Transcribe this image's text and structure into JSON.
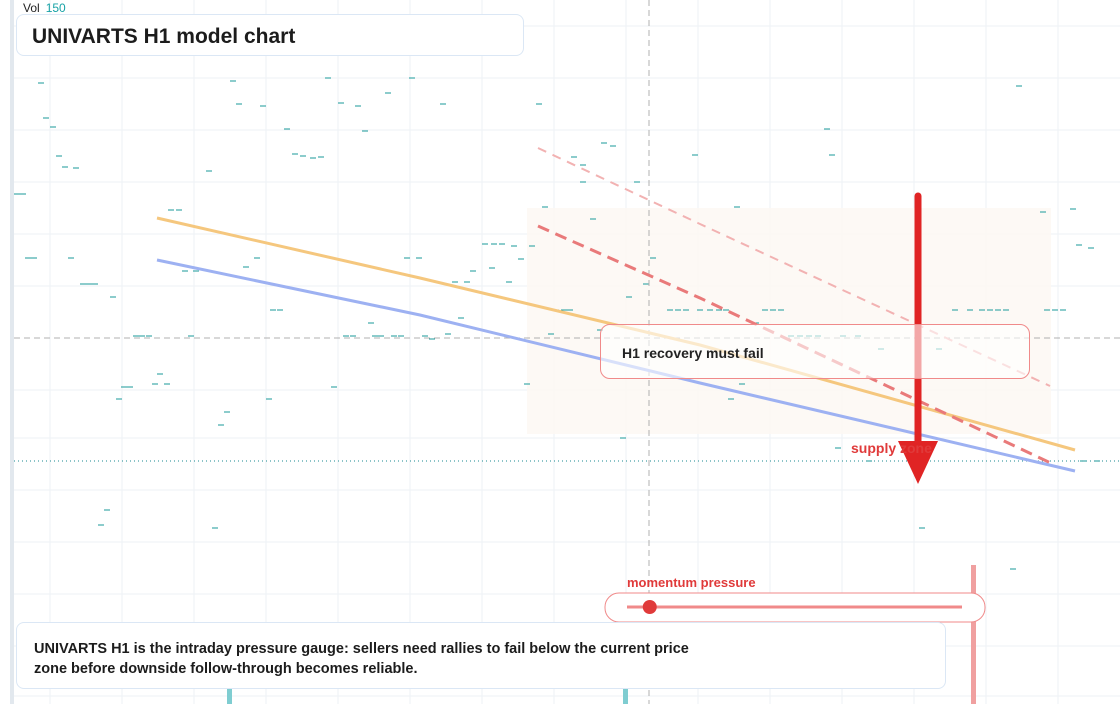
{
  "header": {
    "title": "UNIVARTS H1 model chart",
    "vol_label": "Vol",
    "vol_value": "150"
  },
  "annotations": {
    "callout": "H1 recovery must fail",
    "zone_label": "supply zone",
    "gauge_label": "momentum pressure"
  },
  "description": "UNIVARTS H1 is the intraday pressure gauge: sellers need rallies to fail below the current price zone before downside follow-through becomes reliable.",
  "colors": {
    "bearish_arrow": "#e02424",
    "orange_line": "#f5c77e",
    "blue_line": "#9db1f2",
    "trend_red": "#e97a7a",
    "trend_pink": "#f2b2b2",
    "tick_marks": "#1a9a9a",
    "zone_fill": "#fdf7f2"
  },
  "chart_data": {
    "type": "line",
    "title": "UNIVARTS H1 model chart",
    "xlabel": "",
    "ylabel": "",
    "grid": true,
    "momentum_pressure": 0.05,
    "series": [
      {
        "values": [
          [
            157,
            218
          ],
          [
            420,
            278
          ],
          [
            700,
            345
          ],
          [
            1075,
            450
          ]
        ]
      },
      {
        "values": [
          [
            157,
            260
          ],
          [
            420,
            315
          ],
          [
            700,
            383
          ],
          [
            1075,
            471
          ]
        ]
      },
      {
        "values": [
          [
            538,
            226
          ],
          [
            700,
            298
          ],
          [
            1055,
            465
          ]
        ]
      },
      {
        "values": [
          [
            538,
            148
          ],
          [
            700,
            224
          ],
          [
            1050,
            386
          ]
        ]
      }
    ],
    "ticks": [
      [
        38,
        83
      ],
      [
        230,
        81
      ],
      [
        325,
        78
      ],
      [
        409,
        78
      ],
      [
        236,
        104
      ],
      [
        260,
        106
      ],
      [
        338,
        103
      ],
      [
        355,
        106
      ],
      [
        385,
        93
      ],
      [
        440,
        104
      ],
      [
        536,
        104
      ],
      [
        43,
        118
      ],
      [
        50,
        127
      ],
      [
        284,
        129
      ],
      [
        362,
        131
      ],
      [
        56,
        156
      ],
      [
        62,
        167
      ],
      [
        73,
        168
      ],
      [
        206,
        171
      ],
      [
        292,
        154
      ],
      [
        300,
        156
      ],
      [
        310,
        158
      ],
      [
        318,
        157
      ],
      [
        601,
        143
      ],
      [
        610,
        146
      ],
      [
        571,
        157
      ],
      [
        580,
        165
      ],
      [
        692,
        155
      ],
      [
        824,
        129
      ],
      [
        829,
        155
      ],
      [
        1016,
        86
      ],
      [
        14,
        194
      ],
      [
        20,
        194
      ],
      [
        168,
        210
      ],
      [
        176,
        210
      ],
      [
        542,
        207
      ],
      [
        590,
        219
      ],
      [
        634,
        182
      ],
      [
        734,
        207
      ],
      [
        1040,
        212
      ],
      [
        1070,
        209
      ],
      [
        25,
        258
      ],
      [
        31,
        258
      ],
      [
        68,
        258
      ],
      [
        182,
        271
      ],
      [
        193,
        271
      ],
      [
        243,
        267
      ],
      [
        254,
        258
      ],
      [
        404,
        258
      ],
      [
        416,
        258
      ],
      [
        470,
        271
      ],
      [
        482,
        244
      ],
      [
        491,
        244
      ],
      [
        499,
        244
      ],
      [
        511,
        246
      ],
      [
        518,
        259
      ],
      [
        529,
        246
      ],
      [
        489,
        268
      ],
      [
        452,
        282
      ],
      [
        464,
        282
      ],
      [
        506,
        282
      ],
      [
        580,
        182
      ],
      [
        650,
        258
      ],
      [
        80,
        284
      ],
      [
        86,
        284
      ],
      [
        92,
        284
      ],
      [
        110,
        297
      ],
      [
        270,
        310
      ],
      [
        277,
        310
      ],
      [
        553,
        310
      ],
      [
        561,
        310
      ],
      [
        567,
        310
      ],
      [
        626,
        297
      ],
      [
        643,
        284
      ],
      [
        667,
        310
      ],
      [
        675,
        310
      ],
      [
        683,
        310
      ],
      [
        697,
        310
      ],
      [
        707,
        310
      ],
      [
        716,
        310
      ],
      [
        723,
        310
      ],
      [
        762,
        310
      ],
      [
        770,
        310
      ],
      [
        778,
        310
      ],
      [
        133,
        336
      ],
      [
        139,
        336
      ],
      [
        146,
        336
      ],
      [
        188,
        336
      ],
      [
        343,
        336
      ],
      [
        350,
        336
      ],
      [
        368,
        323
      ],
      [
        372,
        336
      ],
      [
        378,
        336
      ],
      [
        391,
        336
      ],
      [
        398,
        336
      ],
      [
        422,
        336
      ],
      [
        429,
        339
      ],
      [
        445,
        334
      ],
      [
        458,
        318
      ],
      [
        548,
        334
      ],
      [
        597,
        330
      ],
      [
        753,
        323
      ],
      [
        788,
        336
      ],
      [
        797,
        336
      ],
      [
        806,
        336
      ],
      [
        815,
        336
      ],
      [
        840,
        336
      ],
      [
        855,
        336
      ],
      [
        878,
        349
      ],
      [
        936,
        349
      ],
      [
        952,
        310
      ],
      [
        967,
        310
      ],
      [
        979,
        310
      ],
      [
        987,
        310
      ],
      [
        995,
        310
      ],
      [
        1003,
        310
      ],
      [
        1044,
        310
      ],
      [
        1052,
        310
      ],
      [
        1060,
        310
      ],
      [
        1076,
        245
      ],
      [
        1088,
        248
      ],
      [
        121,
        387
      ],
      [
        127,
        387
      ],
      [
        152,
        384
      ],
      [
        157,
        374
      ],
      [
        164,
        384
      ],
      [
        116,
        399
      ],
      [
        224,
        412
      ],
      [
        218,
        425
      ],
      [
        266,
        399
      ],
      [
        331,
        387
      ],
      [
        524,
        384
      ],
      [
        620,
        438
      ],
      [
        739,
        384
      ],
      [
        728,
        399
      ],
      [
        835,
        448
      ],
      [
        866,
        461
      ],
      [
        1080,
        461
      ],
      [
        1094,
        461
      ],
      [
        104,
        510
      ],
      [
        98,
        525
      ],
      [
        212,
        528
      ],
      [
        919,
        528
      ],
      [
        1010,
        569
      ]
    ]
  }
}
